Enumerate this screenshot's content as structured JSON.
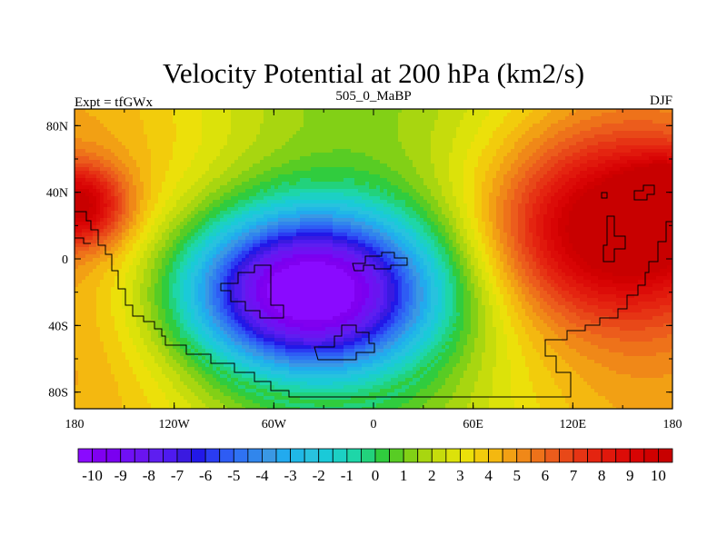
{
  "chart_data": {
    "type": "heatmap",
    "title": "Velocity Potential at 200 hPa (km2/s)",
    "left_string": "Expt = tfGWx",
    "center_string": "505_0_MaBP",
    "right_string": "DJF",
    "x_ticks": [
      {
        "value": -180,
        "label": "180"
      },
      {
        "value": -120,
        "label": "120W"
      },
      {
        "value": -60,
        "label": "60W"
      },
      {
        "value": 0,
        "label": "0"
      },
      {
        "value": 60,
        "label": "60E"
      },
      {
        "value": 120,
        "label": "120E"
      },
      {
        "value": 180,
        "label": "180"
      }
    ],
    "y_ticks": [
      {
        "value": 80,
        "label": "80N"
      },
      {
        "value": 40,
        "label": "40N"
      },
      {
        "value": 0,
        "label": "0"
      },
      {
        "value": -40,
        "label": "40S"
      },
      {
        "value": -80,
        "label": "80S"
      }
    ],
    "xlim": [
      -180,
      180
    ],
    "ylim": [
      -90,
      90
    ],
    "colorbar": {
      "min": -10.5,
      "max": 10.5,
      "step": 0.5,
      "labels": [
        "-10",
        "-9",
        "-8",
        "-7",
        "-6",
        "-5",
        "-4",
        "-3",
        "-2",
        "-1",
        "0",
        "1",
        "2",
        "3",
        "4",
        "5",
        "6",
        "7",
        "8",
        "9",
        "10"
      ],
      "colors": [
        "#8a0aff",
        "#8000f0",
        "#7a00f0",
        "#7010f5",
        "#6a14f0",
        "#5e1ef0",
        "#4e1af0",
        "#3a1ae0",
        "#2218e8",
        "#2a3cf2",
        "#2e5cf4",
        "#2f72f3",
        "#3186ec",
        "#3a98e4",
        "#22aaee",
        "#20b8e6",
        "#28c2de",
        "#1acad8",
        "#1cd0c4",
        "#1ed6a8",
        "#22d27c",
        "#30cc3e",
        "#58cc24",
        "#82d016",
        "#a8d610",
        "#c6dc0c",
        "#dce20a",
        "#ece00a",
        "#f2cc0c",
        "#f4b810",
        "#f2a014",
        "#f08818",
        "#ee721a",
        "#ec5c1c",
        "#e84818",
        "#e63414",
        "#e42410",
        "#e0180c",
        "#dc0c08",
        "#d80404",
        "#d00000",
        "#c80000"
      ]
    },
    "field_centers": [
      {
        "lon": -40,
        "lat": -20,
        "value": -10.4,
        "rlon": 75,
        "rlat": 48
      },
      {
        "lon": 145,
        "lat": 18,
        "value": 10.2,
        "rlon": 70,
        "rlat": 52
      },
      {
        "lon": -178,
        "lat": 32,
        "value": 9.2,
        "rlon": 28,
        "rlat": 24
      },
      {
        "lon": 182,
        "lat": 32,
        "value": 9.2,
        "rlon": 28,
        "rlat": 24
      }
    ],
    "field_base": 3.3,
    "field_lon_bias": -1.6
  }
}
